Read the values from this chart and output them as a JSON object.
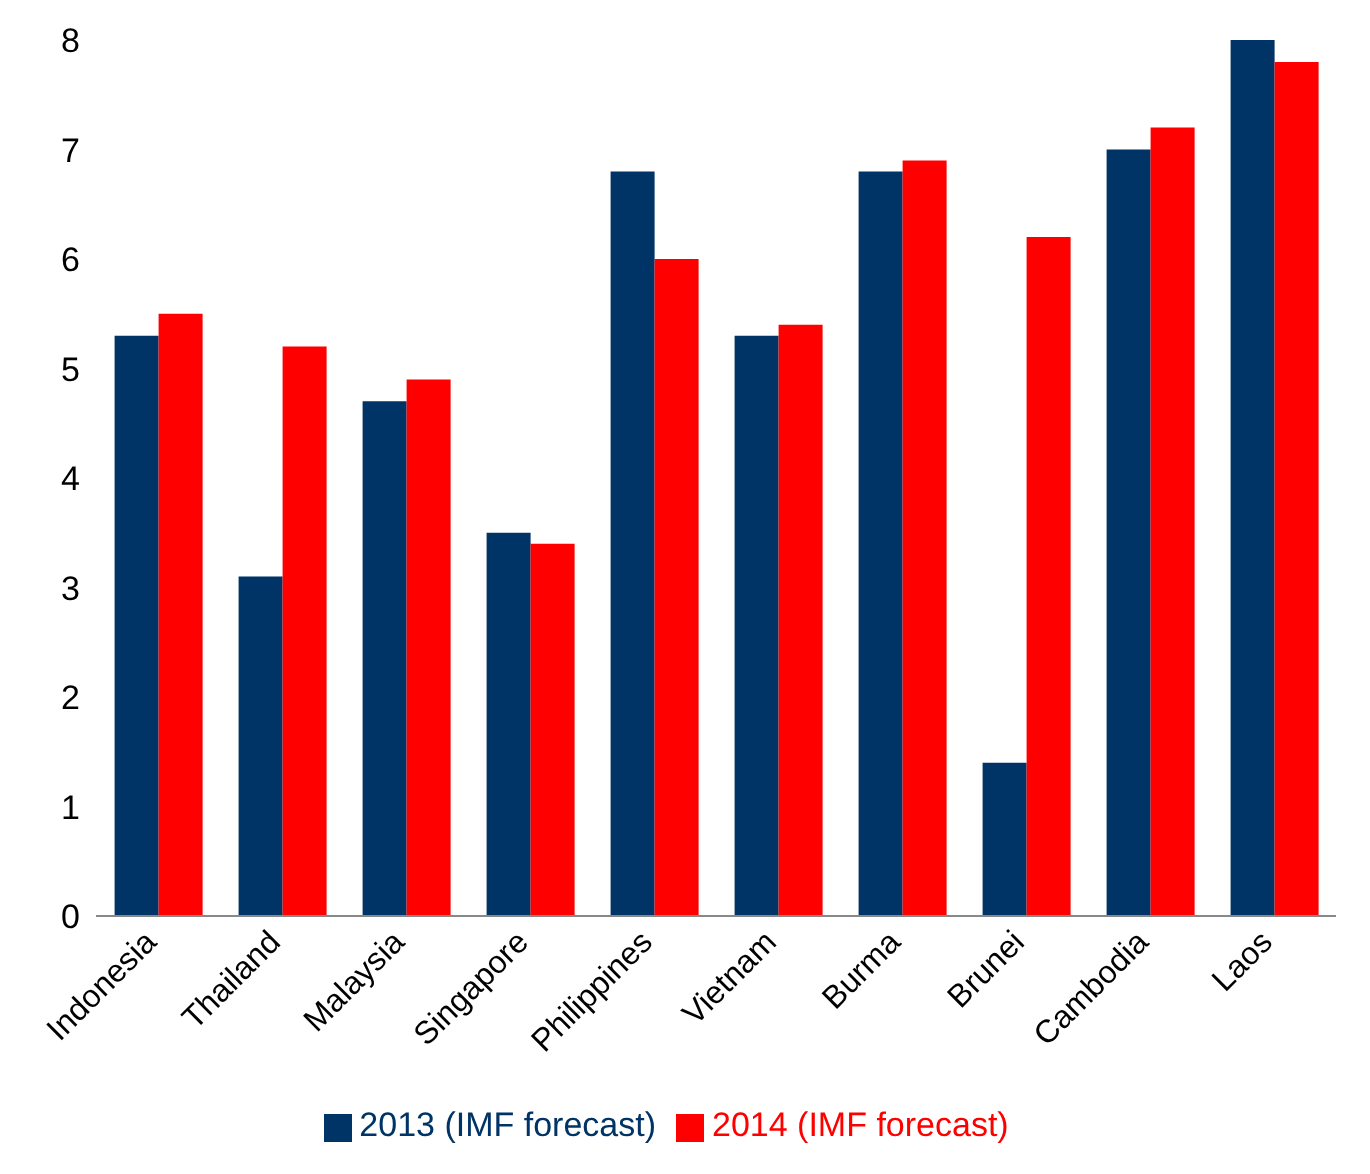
{
  "chart_data": {
    "type": "bar",
    "categories": [
      "Indonesia",
      "Thailand",
      "Malaysia",
      "Singapore",
      "Philippines",
      "Vietnam",
      "Burma",
      "Brunei",
      "Cambodia",
      "Laos"
    ],
    "series": [
      {
        "name": "2013 (IMF forecast)",
        "color": "#003366",
        "values": [
          5.3,
          3.1,
          4.7,
          3.5,
          6.8,
          5.3,
          6.8,
          1.4,
          7.0,
          8.0
        ]
      },
      {
        "name": "2014 (IMF forecast)",
        "color": "#ff0000",
        "values": [
          5.5,
          5.2,
          4.9,
          3.4,
          6.0,
          5.4,
          6.9,
          6.2,
          7.2,
          7.8
        ]
      }
    ],
    "ylim": [
      0,
      8
    ],
    "yticks": [
      0,
      1,
      2,
      3,
      4,
      5,
      6,
      7,
      8
    ],
    "grid": false,
    "legend": "bottom"
  }
}
